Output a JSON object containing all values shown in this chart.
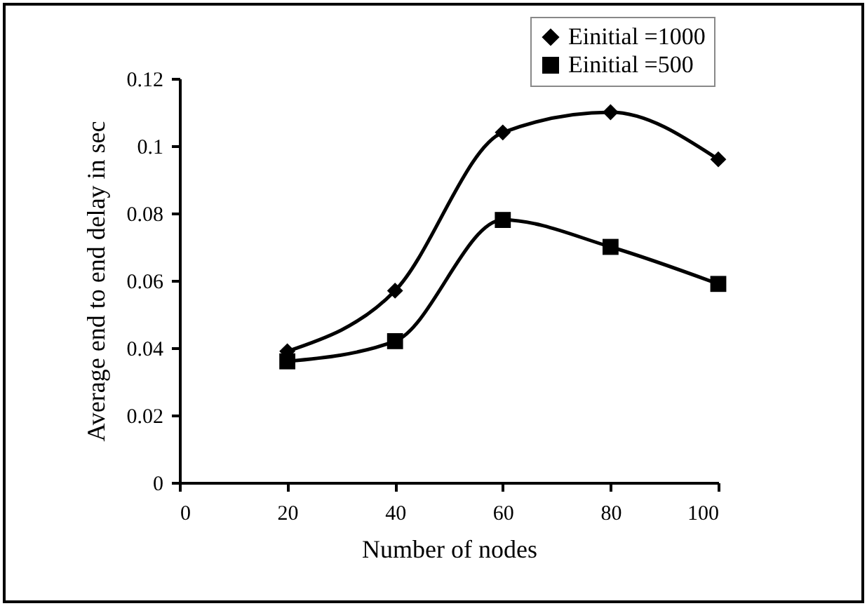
{
  "chart_data": {
    "type": "line",
    "xlabel": "Number of nodes",
    "ylabel": "Average end to end delay in sec",
    "x": [
      20,
      40,
      60,
      80,
      100
    ],
    "series": [
      {
        "name": "Einitial =1000",
        "color": "#000000",
        "marker": "diamond",
        "values": [
          0.039,
          0.057,
          0.104,
          0.11,
          0.096
        ]
      },
      {
        "name": "Einitial =500",
        "color": "#000000",
        "marker": "square",
        "values": [
          0.036,
          0.042,
          0.078,
          0.07,
          0.059
        ]
      }
    ],
    "xlim": [
      0,
      100
    ],
    "xticks": [
      0,
      20,
      40,
      60,
      80,
      100
    ],
    "ylim": [
      0,
      0.12
    ],
    "yticks": [
      0,
      0.02,
      0.04,
      0.06,
      0.08,
      0.1,
      0.12
    ],
    "grid": false,
    "legend": "top right",
    "line_style": "solid"
  }
}
